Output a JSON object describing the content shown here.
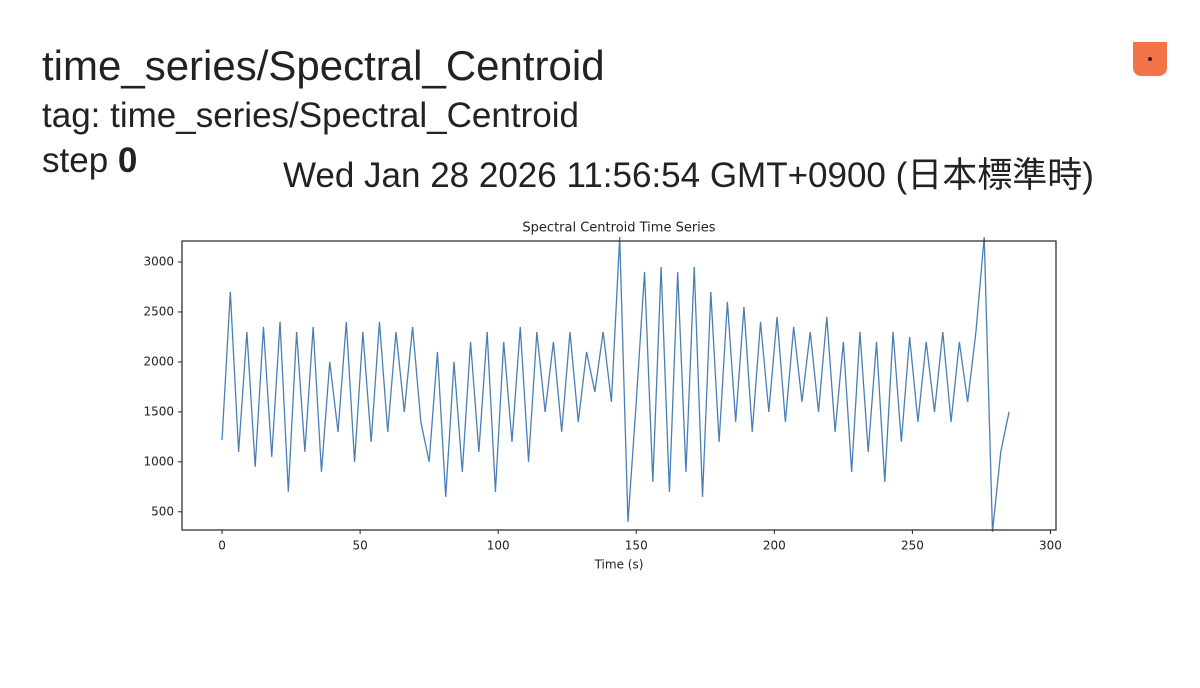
{
  "header": {
    "title": "time_series/Spectral_Centroid",
    "tag_label": "tag: time_series/Spectral_Centroid",
    "step_label": "step",
    "step_value": "0",
    "timestamp": "Wed Jan 28 2026 11:56:54 GMT+0900 (日本標準時)"
  },
  "chart_data": {
    "type": "line",
    "title": "Spectral Centroid Time Series",
    "x_label": "Time (s)",
    "xlim": [
      -14.5,
      302
    ],
    "ylim": [
      318,
      3210
    ],
    "xticks": [
      0,
      50,
      100,
      150,
      200,
      250,
      300
    ],
    "yticks": [
      500,
      1000,
      1500,
      2000,
      2500,
      3000
    ],
    "x": [
      0,
      3,
      6,
      9,
      12,
      15,
      18,
      21,
      24,
      27,
      30,
      33,
      36,
      39,
      42,
      45,
      48,
      51,
      54,
      57,
      60,
      63,
      66,
      69,
      72,
      75,
      78,
      81,
      84,
      87,
      90,
      93,
      96,
      99,
      102,
      105,
      108,
      111,
      114,
      117,
      120,
      123,
      126,
      129,
      132,
      135,
      138,
      141,
      144,
      147,
      150,
      153,
      156,
      159,
      162,
      165,
      168,
      171,
      174,
      177,
      180,
      183,
      186,
      189,
      192,
      195,
      198,
      201,
      204,
      207,
      210,
      213,
      216,
      219,
      222,
      225,
      228,
      231,
      234,
      237,
      240,
      243,
      246,
      249,
      252,
      255,
      258,
      261,
      264,
      267,
      270,
      273,
      276,
      279,
      282,
      285
    ],
    "series": [
      {
        "color": "#4a7fb5",
        "values": [
          1220,
          2700,
          1100,
          2300,
          950,
          2350,
          1050,
          2400,
          700,
          2300,
          1100,
          2350,
          900,
          2000,
          1300,
          2400,
          1000,
          2300,
          1200,
          2400,
          1300,
          2300,
          1500,
          2350,
          1400,
          1000,
          2100,
          650,
          2000,
          900,
          2200,
          1100,
          2300,
          700,
          2200,
          1200,
          2350,
          1000,
          2300,
          1500,
          2200,
          1300,
          2300,
          1400,
          2100,
          1700,
          2300,
          1600,
          3250,
          400,
          1600,
          2900,
          800,
          2950,
          700,
          2900,
          900,
          2950,
          650,
          2700,
          1200,
          2600,
          1400,
          2550,
          1300,
          2400,
          1500,
          2450,
          1400,
          2350,
          1600,
          2300,
          1500,
          2450,
          1300,
          2200,
          900,
          2300,
          1100,
          2200,
          800,
          2300,
          1200,
          2250,
          1400,
          2200,
          1500,
          2300,
          1400,
          2200,
          1600,
          2300,
          3250,
          300,
          1100,
          1500
        ]
      }
    ]
  }
}
